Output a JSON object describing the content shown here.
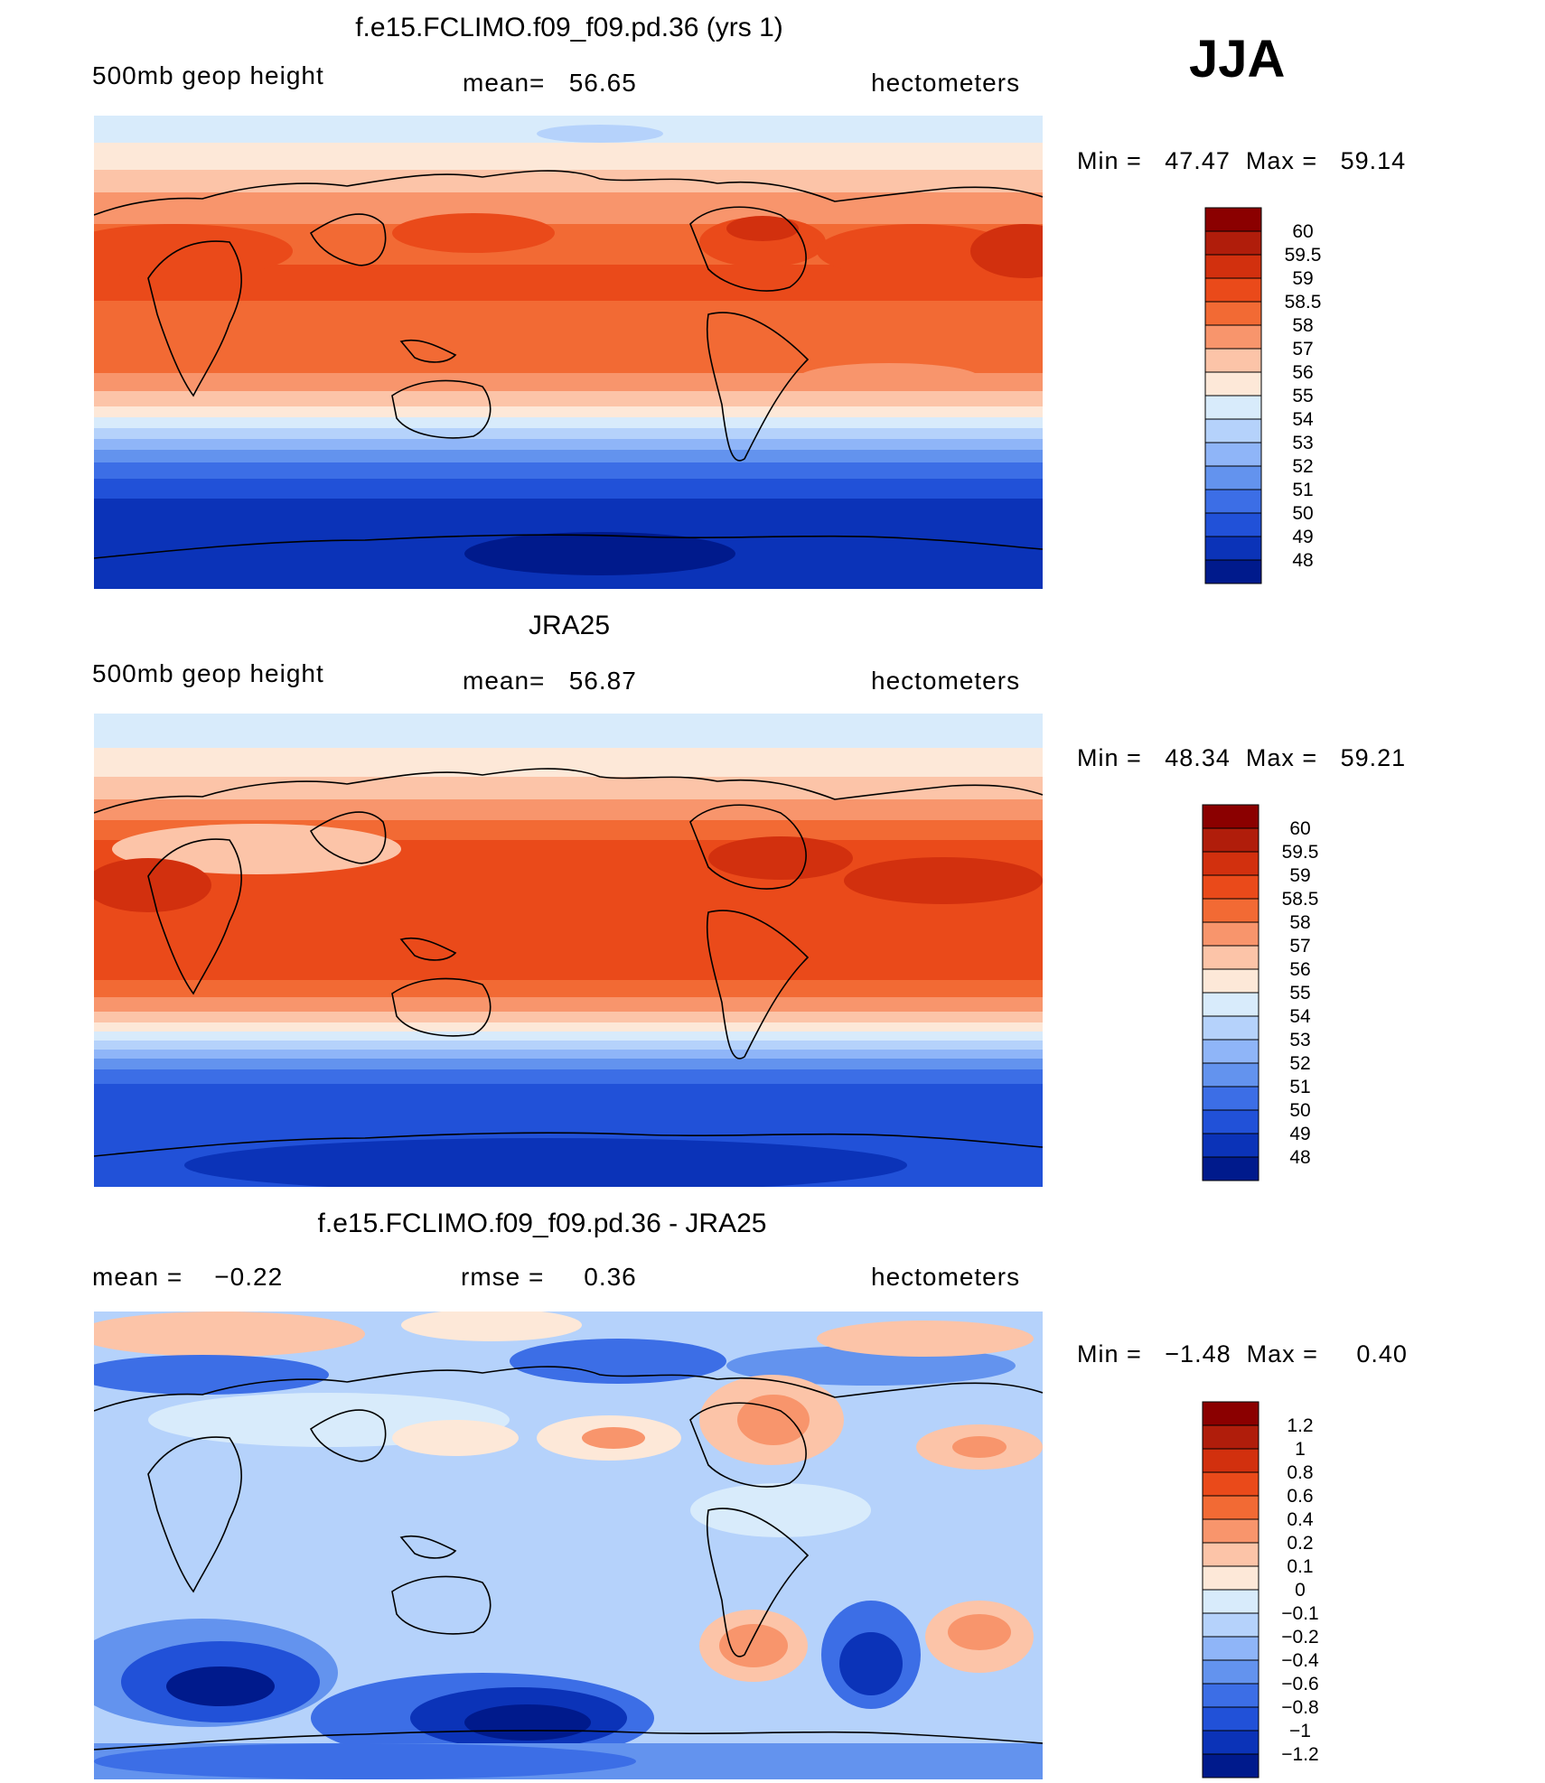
{
  "season": "JJA",
  "panels": [
    {
      "title": "f.e15.FCLIMO.f09_f09.pd.36 (yrs 1)",
      "left_text": "500mb geop height",
      "center_text": "mean=   56.65",
      "right_text": "hectometers",
      "minmax": "Min =   47.47  Max =   59.14",
      "palette": "full",
      "levels": [
        "60",
        "59.5",
        "59",
        "58.5",
        "58",
        "57",
        "56",
        "55",
        "54",
        "53",
        "52",
        "51",
        "50",
        "49",
        "48"
      ],
      "colors": [
        "#8b0000",
        "#b01d0b",
        "#d2300e",
        "#ea4a1a",
        "#f26a34",
        "#f8956c",
        "#fcc4a8",
        "#fde8d8",
        "#d8ebfb",
        "#b5d2fb",
        "#8fb5f8",
        "#6393ee",
        "#3c6ee6",
        "#2151d8",
        "#0b33b8",
        "#001a8c"
      ]
    },
    {
      "title": "JRA25",
      "left_text": "500mb geop height",
      "center_text": "mean=   56.87",
      "right_text": "hectometers",
      "minmax": "Min =   48.34  Max =   59.21",
      "palette": "full",
      "levels": [
        "60",
        "59.5",
        "59",
        "58.5",
        "58",
        "57",
        "56",
        "55",
        "54",
        "53",
        "52",
        "51",
        "50",
        "49",
        "48"
      ],
      "colors": [
        "#8b0000",
        "#b01d0b",
        "#d2300e",
        "#ea4a1a",
        "#f26a34",
        "#f8956c",
        "#fcc4a8",
        "#fde8d8",
        "#d8ebfb",
        "#b5d2fb",
        "#8fb5f8",
        "#6393ee",
        "#3c6ee6",
        "#2151d8",
        "#0b33b8",
        "#001a8c"
      ]
    },
    {
      "title": "f.e15.FCLIMO.f09_f09.pd.36 - JRA25",
      "left_text": "mean =    −0.22",
      "center_text": "rmse =     0.36",
      "right_text": "hectometers",
      "minmax": "Min =   −1.48  Max =     0.40",
      "palette": "diff",
      "levels": [
        "1.2",
        "1",
        "0.8",
        "0.6",
        "0.4",
        "0.2",
        "0.1",
        "0",
        "−0.1",
        "−0.2",
        "−0.4",
        "−0.6",
        "−0.8",
        "−1",
        "−1.2"
      ],
      "colors": [
        "#8b0000",
        "#b01d0b",
        "#d2300e",
        "#ea4a1a",
        "#f26a34",
        "#f8956c",
        "#fcc4a8",
        "#fde8d8",
        "#d8ebfb",
        "#b5d2fb",
        "#8fb5f8",
        "#6393ee",
        "#3c6ee6",
        "#2151d8",
        "#0b33b8",
        "#001a8c"
      ]
    }
  ],
  "chart_data": [
    {
      "type": "heatmap",
      "title": "f.e15.FCLIMO.f09_f09.pd.36 (yrs 1)",
      "variable": "500mb geop height",
      "units": "hectometers",
      "mean": 56.65,
      "min": 47.47,
      "max": 59.14,
      "contour_levels": [
        48,
        49,
        50,
        51,
        52,
        53,
        54,
        55,
        56,
        57,
        58,
        58.5,
        59,
        59.5,
        60
      ]
    },
    {
      "type": "heatmap",
      "title": "JRA25",
      "variable": "500mb geop height",
      "units": "hectometers",
      "mean": 56.87,
      "min": 48.34,
      "max": 59.21,
      "contour_levels": [
        48,
        49,
        50,
        51,
        52,
        53,
        54,
        55,
        56,
        57,
        58,
        58.5,
        59,
        59.5,
        60
      ]
    },
    {
      "type": "heatmap",
      "title": "f.e15.FCLIMO.f09_f09.pd.36 - JRA25",
      "units": "hectometers",
      "mean": -0.22,
      "rmse": 0.36,
      "min": -1.48,
      "max": 0.4,
      "contour_levels": [
        -1.2,
        -1,
        -0.8,
        -0.6,
        -0.4,
        -0.2,
        -0.1,
        0,
        0.1,
        0.2,
        0.4,
        0.6,
        0.8,
        1,
        1.2
      ]
    }
  ]
}
